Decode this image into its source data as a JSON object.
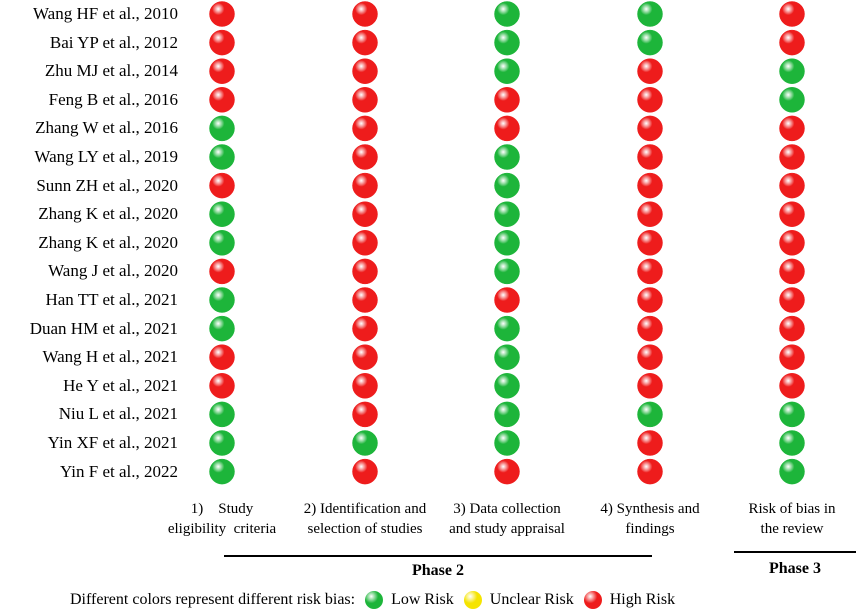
{
  "chart_data": {
    "type": "table",
    "studies": [
      "Wang HF et al., 2010",
      "Bai YP et al., 2012",
      "Zhu MJ et al., 2014",
      "Feng B et al., 2016",
      "Zhang W et al., 2016",
      "Wang LY et al., 2019",
      "Sunn ZH et al., 2020",
      "Zhang K et al., 2020",
      "Zhang K et al., 2020",
      "Wang J et al., 2020",
      "Han TT et al., 2021",
      "Duan HM et al., 2021",
      "Wang H et al., 2021",
      "He Y et al., 2021",
      "Niu L et al., 2021",
      "Yin XF et al., 2021",
      "Yin F et al., 2022"
    ],
    "columns": [
      {
        "label_lines": [
          "1)    Study",
          "eligibility  criteria"
        ]
      },
      {
        "label_lines": [
          "2) Identification and",
          "selection of studies"
        ]
      },
      {
        "label_lines": [
          "3) Data collection",
          "and study appraisal"
        ]
      },
      {
        "label_lines": [
          "4) Synthesis and",
          "findings"
        ]
      },
      {
        "label_lines": [
          "Risk of bias in",
          "the review"
        ]
      }
    ],
    "ratings": [
      [
        "High",
        "High",
        "Low",
        "Low",
        "High"
      ],
      [
        "High",
        "High",
        "Low",
        "Low",
        "High"
      ],
      [
        "High",
        "High",
        "Low",
        "High",
        "Low"
      ],
      [
        "High",
        "High",
        "High",
        "High",
        "Low"
      ],
      [
        "Low",
        "High",
        "High",
        "High",
        "High"
      ],
      [
        "Low",
        "High",
        "Low",
        "High",
        "High"
      ],
      [
        "High",
        "High",
        "Low",
        "High",
        "High"
      ],
      [
        "Low",
        "High",
        "Low",
        "High",
        "High"
      ],
      [
        "Low",
        "High",
        "Low",
        "High",
        "High"
      ],
      [
        "High",
        "High",
        "Low",
        "High",
        "High"
      ],
      [
        "Low",
        "High",
        "High",
        "High",
        "High"
      ],
      [
        "Low",
        "High",
        "Low",
        "High",
        "High"
      ],
      [
        "High",
        "High",
        "Low",
        "High",
        "High"
      ],
      [
        "High",
        "High",
        "Low",
        "High",
        "High"
      ],
      [
        "Low",
        "High",
        "Low",
        "Low",
        "Low"
      ],
      [
        "Low",
        "Low",
        "Low",
        "High",
        "Low"
      ],
      [
        "Low",
        "High",
        "High",
        "High",
        "Low"
      ]
    ],
    "phases": [
      {
        "label": "Phase 2"
      },
      {
        "label": "Phase 3"
      }
    ],
    "legend": {
      "intro": "Different colors represent different risk bias:",
      "items": [
        {
          "key": "Low",
          "label": "Low Risk",
          "color": "#1db53a"
        },
        {
          "key": "Unclear",
          "label": "Unclear Risk",
          "color": "#f5e400"
        },
        {
          "key": "High",
          "label": "High Risk",
          "color": "#ee1c1c"
        }
      ]
    }
  }
}
